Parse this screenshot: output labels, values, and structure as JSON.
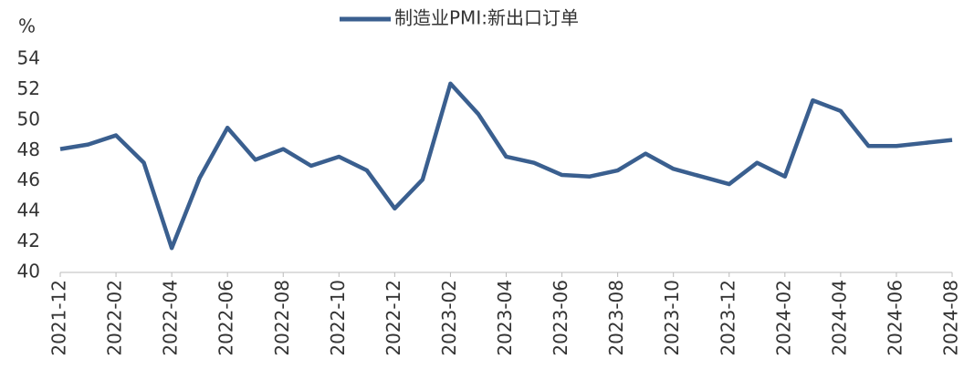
{
  "chart_data": {
    "type": "line",
    "title": "制造业PMI:新出口订单",
    "y_label": "%",
    "categories": [
      "2021-12",
      null,
      "2022-02",
      null,
      "2022-04",
      null,
      "2022-06",
      null,
      "2022-08",
      null,
      "2022-10",
      null,
      "2022-12",
      null,
      "2023-02",
      null,
      "2023-04",
      null,
      "2023-06",
      null,
      "2023-08",
      null,
      "2023-10",
      null,
      "2023-12",
      null,
      "2024-02",
      null,
      "2024-04",
      null,
      "2024-06",
      null,
      "2024-08"
    ],
    "series": [
      {
        "name": "制造业PMI:新出口订单",
        "color": "#3a5f8f",
        "values": [
          48.1,
          48.4,
          49.0,
          47.2,
          41.6,
          46.2,
          49.5,
          47.4,
          48.1,
          47.0,
          47.6,
          46.7,
          44.2,
          46.1,
          52.4,
          50.4,
          47.6,
          47.2,
          46.4,
          46.3,
          46.7,
          47.8,
          46.8,
          46.3,
          45.8,
          47.2,
          46.3,
          51.3,
          50.6,
          48.3,
          48.3,
          48.5,
          48.7
        ]
      }
    ],
    "ylim": [
      40,
      54
    ],
    "yticks": [
      40,
      42,
      44,
      46,
      48,
      50,
      52,
      54
    ],
    "grid": false,
    "legend": "top"
  }
}
